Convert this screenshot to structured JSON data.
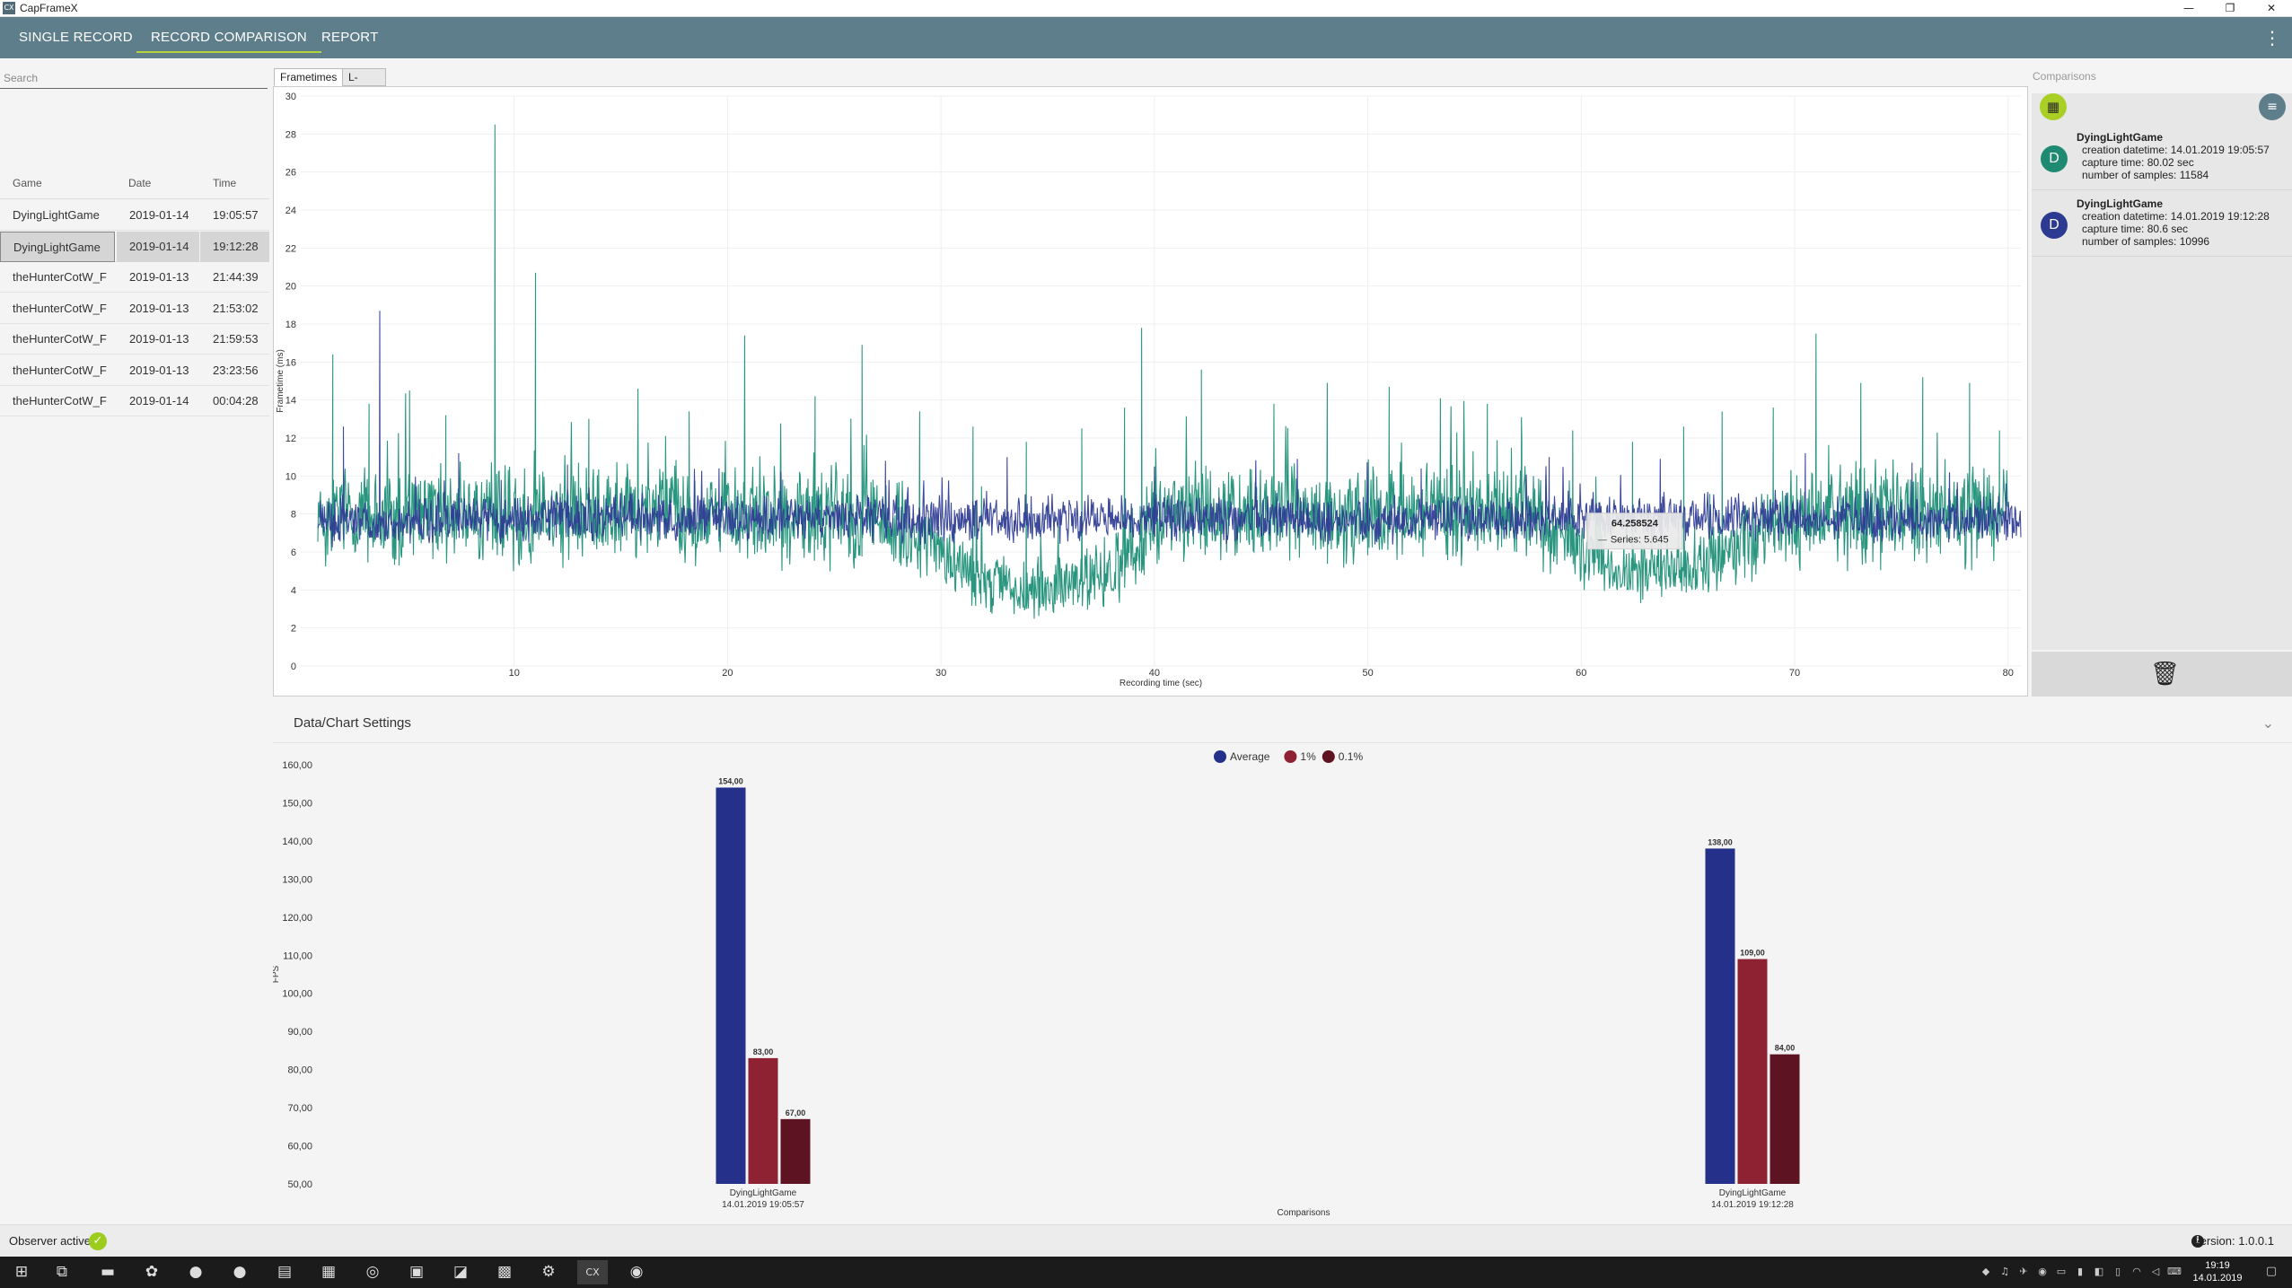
{
  "app": {
    "title": "CapFrameX",
    "icon_text": "CX"
  },
  "window": {
    "minimize": "—",
    "restore": "❐",
    "close": "✕"
  },
  "nav": {
    "tabs": [
      {
        "label": "SINGLE RECORD"
      },
      {
        "label": "RECORD COMPARISON"
      },
      {
        "label": "REPORT"
      }
    ],
    "active_tab": 1,
    "menu_icon": "⋮"
  },
  "left_panel": {
    "search_placeholder": "Search",
    "columns": {
      "game": "Game",
      "date": "Date",
      "time": "Time"
    },
    "records": [
      {
        "game": "DyingLightGame",
        "date": "2019-01-14",
        "time": "19:05:57"
      },
      {
        "game": "DyingLightGame",
        "date": "2019-01-14",
        "time": "19:12:28",
        "selected": true
      },
      {
        "game": "theHunterCotW_F",
        "date": "2019-01-13",
        "time": "21:44:39"
      },
      {
        "game": "theHunterCotW_F",
        "date": "2019-01-13",
        "time": "21:53:02"
      },
      {
        "game": "theHunterCotW_F",
        "date": "2019-01-13",
        "time": "21:59:53"
      },
      {
        "game": "theHunterCotW_F",
        "date": "2019-01-13",
        "time": "23:23:56"
      },
      {
        "game": "theHunterCotW_F",
        "date": "2019-01-14",
        "time": "00:04:28"
      }
    ]
  },
  "chart_tabs": [
    {
      "label": "Frametimes"
    },
    {
      "label": "L-Shape"
    }
  ],
  "comparisons": {
    "title": "Comparisons",
    "items": [
      {
        "avatar": "D",
        "color": "#1e8a72",
        "game": "DyingLightGame",
        "creation": "creation datetime: 14.01.2019 19:05:57",
        "capture": "capture time: 80.02 sec",
        "samples": "number of samples: 11584"
      },
      {
        "avatar": "D",
        "color": "#2c3a92",
        "game": "DyingLightGame",
        "creation": "creation datetime: 14.01.2019 19:12:28",
        "capture": "capture time: 80.6 sec",
        "samples": "number of samples: 10996"
      }
    ],
    "icons": {
      "add": "table-icon",
      "clear": "clear-list-icon",
      "delete": "trash-icon"
    }
  },
  "settings": {
    "title": "Data/Chart Settings",
    "chevron": "⌄"
  },
  "chart_data": [
    {
      "type": "line",
      "ylabel": "Frametime (ms)",
      "xlabel": "Recording time (sec)",
      "xlim": [
        0,
        80.6
      ],
      "ylim": [
        0,
        30
      ],
      "x_ticks": [
        10,
        20,
        30,
        40,
        50,
        60,
        70,
        80
      ],
      "y_ticks": [
        0,
        2,
        4,
        6,
        8,
        10,
        12,
        14,
        16,
        18,
        20,
        22,
        24,
        26,
        28,
        30
      ],
      "grid": true,
      "series": [
        {
          "color": "#1f9078",
          "profile": {
            "t": [
              0,
              5,
              10,
              15,
              20,
              25,
              28,
              30,
              32,
              34,
              36,
              38,
              40,
              45,
              50,
              55,
              58,
              60,
              62,
              64,
              66,
              68,
              70,
              75,
              80
            ],
            "base": [
              7.8,
              8.0,
              7.9,
              8.1,
              8.0,
              7.9,
              7.5,
              6.0,
              4.5,
              4.0,
              4.2,
              5.0,
              7.8,
              8.0,
              8.0,
              8.1,
              7.8,
              6.0,
              5.0,
              5.0,
              5.5,
              6.8,
              7.8,
              8.0,
              8.0
            ],
            "amp": [
              2.2,
              2.2,
              2.2,
              2.2,
              2.2,
              2.2,
              2.0,
              1.6,
              1.4,
              1.3,
              1.4,
              1.6,
              2.2,
              2.2,
              2.2,
              2.2,
              2.0,
              1.6,
              1.4,
              1.4,
              1.5,
              1.8,
              2.2,
              2.2,
              2.2
            ]
          },
          "spikes": [
            [
              1.5,
              16.4
            ],
            [
              3.2,
              13.8
            ],
            [
              5.1,
              14.5
            ],
            [
              6.8,
              13.2
            ],
            [
              9.1,
              28.5
            ],
            [
              11.0,
              20.7
            ],
            [
              13.5,
              13.0
            ],
            [
              15.8,
              14.6
            ],
            [
              18.2,
              13.4
            ],
            [
              20.8,
              17.4
            ],
            [
              24.1,
              14.2
            ],
            [
              26.3,
              16.9
            ],
            [
              29.0,
              13.4
            ],
            [
              31.5,
              12.6
            ],
            [
              34.0,
              11.8
            ],
            [
              36.6,
              12.5
            ],
            [
              38.6,
              13.6
            ],
            [
              39.4,
              17.8
            ],
            [
              42.2,
              15.6
            ],
            [
              45.6,
              13.8
            ],
            [
              48.1,
              14.9
            ],
            [
              51.0,
              14.7
            ],
            [
              53.4,
              14.1
            ],
            [
              55.6,
              13.8
            ],
            [
              57.2,
              13.1
            ],
            [
              59.6,
              12.4
            ],
            [
              62.4,
              11.8
            ],
            [
              64.8,
              12.6
            ],
            [
              66.6,
              13.4
            ],
            [
              69.0,
              13.6
            ],
            [
              71.0,
              17.5
            ],
            [
              73.1,
              14.9
            ],
            [
              76.0,
              15.2
            ],
            [
              78.2,
              14.9
            ],
            [
              79.6,
              12.4
            ]
          ]
        },
        {
          "color": "#2c3a92",
          "profile": {
            "t": [
              0,
              10,
              20,
              30,
              40,
              50,
              60,
              70,
              80.6
            ],
            "base": [
              7.6,
              7.8,
              7.8,
              7.7,
              7.8,
              7.7,
              7.8,
              7.8,
              7.6
            ],
            "amp": [
              1.0,
              1.0,
              1.0,
              1.0,
              1.0,
              1.0,
              1.0,
              1.0,
              1.0
            ]
          },
          "spikes": [
            [
              2.0,
              12.6
            ],
            [
              3.7,
              18.7
            ],
            [
              7.4,
              11.2
            ],
            [
              12.5,
              10.6
            ],
            [
              19.6,
              10.4
            ],
            [
              27.4,
              10.8
            ],
            [
              33.1,
              11.0
            ],
            [
              40.0,
              10.5
            ],
            [
              46.7,
              10.9
            ],
            [
              52.5,
              10.4
            ],
            [
              58.5,
              11.0
            ],
            [
              63.7,
              10.9
            ],
            [
              70.5,
              11.2
            ],
            [
              75.5,
              10.7
            ],
            [
              79.9,
              9.6
            ]
          ]
        }
      ],
      "tooltip": {
        "value": "64.258524",
        "series_label": "Series",
        "series_value": "5.645",
        "at_x": 61.2,
        "at_y": 7.1
      }
    },
    {
      "type": "bar",
      "ylabel": "FPS",
      "xlabel": "Comparisons",
      "ylim": [
        50,
        160
      ],
      "y_ticks": [
        "50,00",
        "60,00",
        "70,00",
        "80,00",
        "90,00",
        "100,00",
        "110,00",
        "120,00",
        "130,00",
        "140,00",
        "150,00",
        "160,00"
      ],
      "legend_position": "top-center",
      "legend": [
        {
          "name": "Average",
          "color": "#25308a"
        },
        {
          "name": "1%",
          "color": "#8e2233"
        },
        {
          "name": "0.1%",
          "color": "#5e1322"
        }
      ],
      "categories": [
        {
          "line1": "DyingLightGame",
          "line2": "14.01.2019 19:05:57"
        },
        {
          "line1": "DyingLightGame",
          "line2": "14.01.2019 19:12:28"
        }
      ],
      "series": [
        {
          "name": "Average",
          "values": [
            154.0,
            138.0
          ],
          "labels": [
            "154,00",
            "138,00"
          ]
        },
        {
          "name": "1%",
          "values": [
            83.0,
            109.0
          ],
          "labels": [
            "83,00",
            "109,00"
          ]
        },
        {
          "name": "0.1%",
          "values": [
            67.0,
            84.0
          ],
          "labels": [
            "67,00",
            "84,00"
          ]
        }
      ]
    }
  ],
  "status": {
    "observer_label": "Observer active:",
    "check_icon": "✓",
    "info_icon": "i",
    "version": "Version: 1.0.0.1"
  },
  "taskbar": {
    "icons": [
      {
        "name": "windows-start-icon",
        "glyph": "⊞"
      },
      {
        "name": "task-view-icon",
        "glyph": "⧉"
      },
      {
        "name": "file-explorer-icon",
        "glyph": "▬"
      },
      {
        "name": "app-icon",
        "glyph": "✿"
      },
      {
        "name": "firefox-icon",
        "glyph": "●"
      },
      {
        "name": "spotify-icon",
        "glyph": "●"
      },
      {
        "name": "notepad-icon",
        "glyph": "▤"
      },
      {
        "name": "calculator-icon",
        "glyph": "▦"
      },
      {
        "name": "browser-icon",
        "glyph": "◎"
      },
      {
        "name": "store-icon",
        "glyph": "▣"
      },
      {
        "name": "paint-icon",
        "glyph": "◪"
      },
      {
        "name": "media-icon",
        "glyph": "▩"
      },
      {
        "name": "settings-icon",
        "glyph": "⚙"
      },
      {
        "name": "capframex-taskbar-icon",
        "glyph": "CX",
        "active": true
      },
      {
        "name": "steam-icon",
        "glyph": "◉"
      }
    ],
    "tray": [
      {
        "name": "tray-app-icon-1",
        "glyph": "◆"
      },
      {
        "name": "tray-app-icon-2",
        "glyph": "♫"
      },
      {
        "name": "tray-app-icon-3",
        "glyph": "✈"
      },
      {
        "name": "tray-steam-icon",
        "glyph": "◉"
      },
      {
        "name": "tray-network-icon",
        "glyph": "▭"
      },
      {
        "name": "tray-app-icon-4",
        "glyph": "▮"
      },
      {
        "name": "tray-app-icon-5",
        "glyph": "◧"
      },
      {
        "name": "tray-battery-icon",
        "glyph": "▯"
      },
      {
        "name": "tray-wifi-icon",
        "glyph": "◠"
      },
      {
        "name": "tray-volume-icon",
        "glyph": "◁"
      },
      {
        "name": "tray-language-icon",
        "glyph": "⌨"
      }
    ],
    "time": "19:19",
    "date": "14.01.2019",
    "notification_icon": "▢"
  }
}
